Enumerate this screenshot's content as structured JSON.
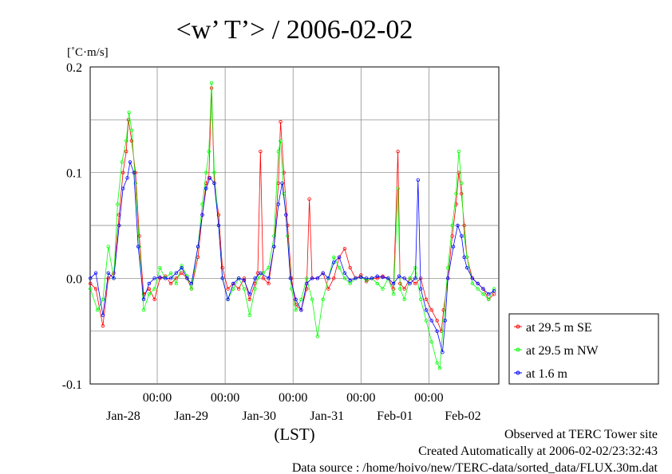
{
  "title": "<w’ T’> / 2006-02-02",
  "unit_label": "[˚C·m/s]",
  "footer": {
    "line1": "Observed at TERC Tower site",
    "line2": "Created Automatically at 2006-02-02/23:32:43",
    "line3": "Data source : /home/hoivo/new/TERC-data/sorted_data/FLUX.30m.dat"
  },
  "colors": {
    "se": "#ff0000",
    "nw": "#00ff00",
    "m16": "#0000ff",
    "grid": "#808080"
  },
  "chart_data": {
    "type": "line",
    "xlabel": "(LST)",
    "ylim": [
      -0.1,
      0.2
    ],
    "yticks": [
      -0.1,
      0.0,
      0.1,
      0.2
    ],
    "ytick_labels": [
      "-0.1",
      "0.0",
      "0.1",
      "0.2"
    ],
    "xlim_days": [
      0,
      6
    ],
    "xtick_time_label": "00:00",
    "xtick_days": [
      1,
      2,
      3,
      4,
      5
    ],
    "date_labels": [
      "Jan-28",
      "Jan-29",
      "Jan-30",
      "Jan-31",
      "Feb-01",
      "Feb-02"
    ],
    "date_label_days": [
      0.5,
      1.5,
      2.5,
      3.5,
      4.5,
      5.5
    ],
    "legend_position": "right",
    "grid": true,
    "series": [
      {
        "name": "at 29.5 m SE",
        "color_key": "se",
        "points": [
          [
            0.02,
            -0.005
          ],
          [
            0.12,
            -0.01
          ],
          [
            0.25,
            -0.045
          ],
          [
            0.35,
            0.0
          ],
          [
            0.45,
            0.005
          ],
          [
            0.55,
            0.06
          ],
          [
            0.62,
            0.1
          ],
          [
            0.68,
            0.12
          ],
          [
            0.72,
            0.15
          ],
          [
            0.78,
            0.13
          ],
          [
            0.85,
            0.1
          ],
          [
            0.92,
            0.04
          ],
          [
            1.0,
            -0.015
          ],
          [
            1.1,
            -0.01
          ],
          [
            1.2,
            -0.02
          ],
          [
            1.3,
            0.0
          ],
          [
            1.4,
            0.002
          ],
          [
            1.5,
            -0.005
          ],
          [
            1.6,
            0.0
          ],
          [
            1.7,
            0.005
          ],
          [
            1.8,
            0.0
          ],
          [
            1.88,
            -0.01
          ],
          [
            2.0,
            0.02
          ],
          [
            2.08,
            0.06
          ],
          [
            2.15,
            0.09
          ],
          [
            2.2,
            0.095
          ],
          [
            2.25,
            0.18
          ],
          [
            2.3,
            0.09
          ],
          [
            2.38,
            0.06
          ],
          [
            2.45,
            0.01
          ],
          [
            2.55,
            -0.01
          ],
          [
            2.65,
            -0.005
          ],
          [
            2.75,
            -0.01
          ],
          [
            2.85,
            0.0
          ],
          [
            2.95,
            -0.02
          ],
          [
            3.05,
            -0.005
          ],
          [
            3.1,
            0.005
          ],
          [
            3.15,
            0.12
          ],
          [
            3.2,
            0.0
          ],
          [
            3.3,
            -0.005
          ],
          [
            3.4,
            0.03
          ],
          [
            3.48,
            0.09
          ],
          [
            3.52,
            0.148
          ],
          [
            3.58,
            0.1
          ],
          [
            3.65,
            0.05
          ],
          [
            3.72,
            0.0
          ],
          [
            3.8,
            -0.025
          ],
          [
            3.9,
            -0.03
          ],
          [
            4.0,
            -0.01
          ],
          [
            4.05,
            0.075
          ],
          [
            4.1,
            0.0
          ],
          [
            4.2,
            0.0
          ],
          [
            4.3,
            0.005
          ],
          [
            4.4,
            -0.01
          ],
          [
            4.5,
            0.0
          ],
          [
            4.6,
            0.02
          ],
          [
            4.7,
            0.028
          ],
          [
            4.8,
            0.01
          ],
          [
            4.9,
            0.0
          ],
          [
            5.0,
            0.003
          ],
          [
            5.1,
            -0.003
          ],
          [
            5.2,
            0.0
          ],
          [
            5.3,
            0.0
          ],
          [
            5.4,
            0.002
          ],
          [
            5.5,
            0.0
          ],
          [
            5.6,
            -0.01
          ],
          [
            5.68,
            0.12
          ],
          [
            5.72,
            -0.005
          ],
          [
            5.8,
            -0.01
          ],
          [
            5.9,
            0.0
          ],
          [
            6.0,
            -0.005
          ],
          [
            6.1,
            0.0
          ],
          [
            6.2,
            -0.02
          ],
          [
            6.3,
            -0.03
          ],
          [
            6.4,
            -0.04
          ],
          [
            6.48,
            -0.05
          ],
          [
            6.52,
            -0.03
          ],
          [
            6.6,
            0.0
          ],
          [
            6.68,
            0.04
          ],
          [
            6.75,
            0.07
          ],
          [
            6.8,
            0.1
          ],
          [
            6.85,
            0.08
          ],
          [
            6.9,
            0.05
          ],
          [
            6.95,
            0.02
          ],
          [
            7.05,
            0.0
          ],
          [
            7.15,
            -0.005
          ],
          [
            7.25,
            -0.01
          ],
          [
            7.35,
            -0.02
          ],
          [
            7.45,
            -0.015
          ]
        ]
      },
      {
        "name": "at 29.5 m NW",
        "color_key": "nw",
        "points": [
          [
            0.02,
            -0.01
          ],
          [
            0.15,
            -0.03
          ],
          [
            0.25,
            -0.02
          ],
          [
            0.35,
            0.03
          ],
          [
            0.45,
            0.0
          ],
          [
            0.52,
            0.07
          ],
          [
            0.6,
            0.11
          ],
          [
            0.68,
            0.13
          ],
          [
            0.73,
            0.157
          ],
          [
            0.78,
            0.14
          ],
          [
            0.85,
            0.09
          ],
          [
            0.92,
            0.03
          ],
          [
            1.0,
            -0.03
          ],
          [
            1.1,
            -0.015
          ],
          [
            1.2,
            -0.01
          ],
          [
            1.3,
            0.01
          ],
          [
            1.4,
            0.0
          ],
          [
            1.5,
            0.005
          ],
          [
            1.6,
            -0.005
          ],
          [
            1.7,
            0.012
          ],
          [
            1.8,
            0.002
          ],
          [
            1.88,
            -0.01
          ],
          [
            2.0,
            0.03
          ],
          [
            2.08,
            0.07
          ],
          [
            2.15,
            0.1
          ],
          [
            2.2,
            0.12
          ],
          [
            2.25,
            0.185
          ],
          [
            2.3,
            0.1
          ],
          [
            2.38,
            0.05
          ],
          [
            2.45,
            0.0
          ],
          [
            2.55,
            -0.02
          ],
          [
            2.65,
            -0.01
          ],
          [
            2.75,
            0.0
          ],
          [
            2.85,
            -0.01
          ],
          [
            2.95,
            -0.035
          ],
          [
            3.05,
            -0.01
          ],
          [
            3.1,
            0.0
          ],
          [
            3.2,
            0.005
          ],
          [
            3.3,
            0.01
          ],
          [
            3.4,
            0.04
          ],
          [
            3.48,
            0.12
          ],
          [
            3.52,
            0.13
          ],
          [
            3.58,
            0.08
          ],
          [
            3.65,
            0.04
          ],
          [
            3.72,
            -0.01
          ],
          [
            3.8,
            -0.03
          ],
          [
            3.9,
            -0.02
          ],
          [
            4.0,
            0.0
          ],
          [
            4.1,
            -0.02
          ],
          [
            4.2,
            -0.055
          ],
          [
            4.3,
            -0.02
          ],
          [
            4.4,
            0.0
          ],
          [
            4.5,
            0.02
          ],
          [
            4.6,
            0.01
          ],
          [
            4.7,
            0.0
          ],
          [
            4.8,
            -0.005
          ],
          [
            4.9,
            0.0
          ],
          [
            5.0,
            0.001
          ],
          [
            5.1,
            -0.002
          ],
          [
            5.2,
            0.0
          ],
          [
            5.3,
            -0.005
          ],
          [
            5.4,
            -0.01
          ],
          [
            5.5,
            0.0
          ],
          [
            5.6,
            -0.015
          ],
          [
            5.68,
            0.085
          ],
          [
            5.72,
            -0.01
          ],
          [
            5.8,
            -0.02
          ],
          [
            5.9,
            0.0
          ],
          [
            6.0,
            0.01
          ],
          [
            6.1,
            -0.02
          ],
          [
            6.2,
            -0.04
          ],
          [
            6.3,
            -0.06
          ],
          [
            6.4,
            -0.08
          ],
          [
            6.45,
            -0.085
          ],
          [
            6.52,
            -0.04
          ],
          [
            6.6,
            0.01
          ],
          [
            6.68,
            0.05
          ],
          [
            6.75,
            0.08
          ],
          [
            6.8,
            0.12
          ],
          [
            6.85,
            0.09
          ],
          [
            6.9,
            0.04
          ],
          [
            6.95,
            0.02
          ],
          [
            7.05,
            -0.005
          ],
          [
            7.15,
            -0.01
          ],
          [
            7.25,
            -0.015
          ],
          [
            7.35,
            -0.02
          ],
          [
            7.45,
            -0.01
          ]
        ]
      },
      {
        "name": "at 1.6 m",
        "color_key": "m16",
        "points": [
          [
            0.02,
            0.0
          ],
          [
            0.12,
            0.005
          ],
          [
            0.25,
            -0.035
          ],
          [
            0.35,
            0.005
          ],
          [
            0.45,
            0.0
          ],
          [
            0.55,
            0.05
          ],
          [
            0.62,
            0.085
          ],
          [
            0.7,
            0.095
          ],
          [
            0.75,
            0.11
          ],
          [
            0.82,
            0.1
          ],
          [
            0.9,
            0.03
          ],
          [
            1.0,
            -0.02
          ],
          [
            1.1,
            -0.005
          ],
          [
            1.2,
            0.0
          ],
          [
            1.3,
            0.001
          ],
          [
            1.4,
            0.0
          ],
          [
            1.5,
            0.0
          ],
          [
            1.6,
            0.005
          ],
          [
            1.7,
            0.01
          ],
          [
            1.8,
            0.0
          ],
          [
            1.88,
            -0.005
          ],
          [
            2.0,
            0.03
          ],
          [
            2.08,
            0.06
          ],
          [
            2.15,
            0.085
          ],
          [
            2.22,
            0.095
          ],
          [
            2.3,
            0.09
          ],
          [
            2.38,
            0.05
          ],
          [
            2.45,
            0.0
          ],
          [
            2.55,
            -0.02
          ],
          [
            2.65,
            -0.005
          ],
          [
            2.75,
            0.0
          ],
          [
            2.85,
            -0.002
          ],
          [
            2.95,
            -0.015
          ],
          [
            3.05,
            0.0
          ],
          [
            3.15,
            0.005
          ],
          [
            3.3,
            0.0
          ],
          [
            3.4,
            0.03
          ],
          [
            3.48,
            0.07
          ],
          [
            3.55,
            0.09
          ],
          [
            3.62,
            0.06
          ],
          [
            3.7,
            0.0
          ],
          [
            3.8,
            -0.02
          ],
          [
            3.9,
            -0.03
          ],
          [
            4.0,
            -0.005
          ],
          [
            4.1,
            0.0
          ],
          [
            4.2,
            0.0
          ],
          [
            4.3,
            0.005
          ],
          [
            4.4,
            0.0
          ],
          [
            4.5,
            0.015
          ],
          [
            4.6,
            0.02
          ],
          [
            4.7,
            0.005
          ],
          [
            4.8,
            -0.002
          ],
          [
            4.9,
            0.0
          ],
          [
            5.0,
            0.001
          ],
          [
            5.1,
            0.0
          ],
          [
            5.2,
            0.0
          ],
          [
            5.3,
            0.002
          ],
          [
            5.4,
            0.001
          ],
          [
            5.5,
            0.0
          ],
          [
            5.6,
            -0.005
          ],
          [
            5.7,
            0.002
          ],
          [
            5.8,
            0.0
          ],
          [
            5.9,
            -0.005
          ],
          [
            6.0,
            0.0
          ],
          [
            6.05,
            0.093
          ],
          [
            6.1,
            -0.01
          ],
          [
            6.2,
            -0.03
          ],
          [
            6.3,
            -0.04
          ],
          [
            6.4,
            -0.05
          ],
          [
            6.5,
            -0.07
          ],
          [
            6.55,
            -0.04
          ],
          [
            6.6,
            0.0
          ],
          [
            6.7,
            0.03
          ],
          [
            6.78,
            0.05
          ],
          [
            6.85,
            0.04
          ],
          [
            6.9,
            0.02
          ],
          [
            6.95,
            0.01
          ],
          [
            7.05,
            0.0
          ],
          [
            7.15,
            -0.005
          ],
          [
            7.25,
            -0.01
          ],
          [
            7.35,
            -0.015
          ],
          [
            7.45,
            -0.012
          ]
        ]
      }
    ]
  }
}
